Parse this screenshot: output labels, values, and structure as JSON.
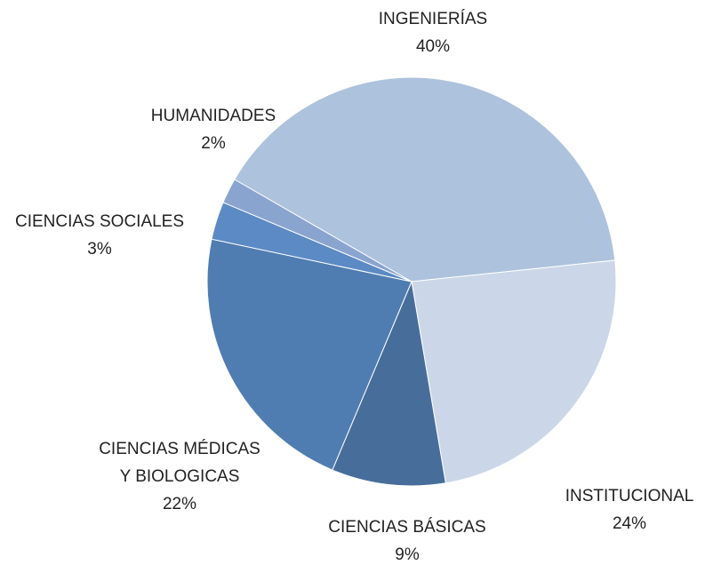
{
  "chart_data": {
    "type": "pie",
    "categories": [
      "INGENIERÍAS",
      "INSTITUCIONAL",
      "CIENCIAS BÁSICAS",
      "CIENCIAS MÉDICAS Y BIOLOGICAS",
      "CIENCIAS SOCIALES",
      "HUMANIDADES"
    ],
    "values": [
      40,
      24,
      9,
      22,
      3,
      2
    ],
    "value_labels": [
      "40%",
      "24%",
      "9%",
      "22%",
      "3%",
      "2%"
    ],
    "colors": [
      "#adc2dc",
      "#cbd7e8",
      "#476d9a",
      "#4f7db1",
      "#5b8ac4",
      "#8aa4d0"
    ]
  }
}
